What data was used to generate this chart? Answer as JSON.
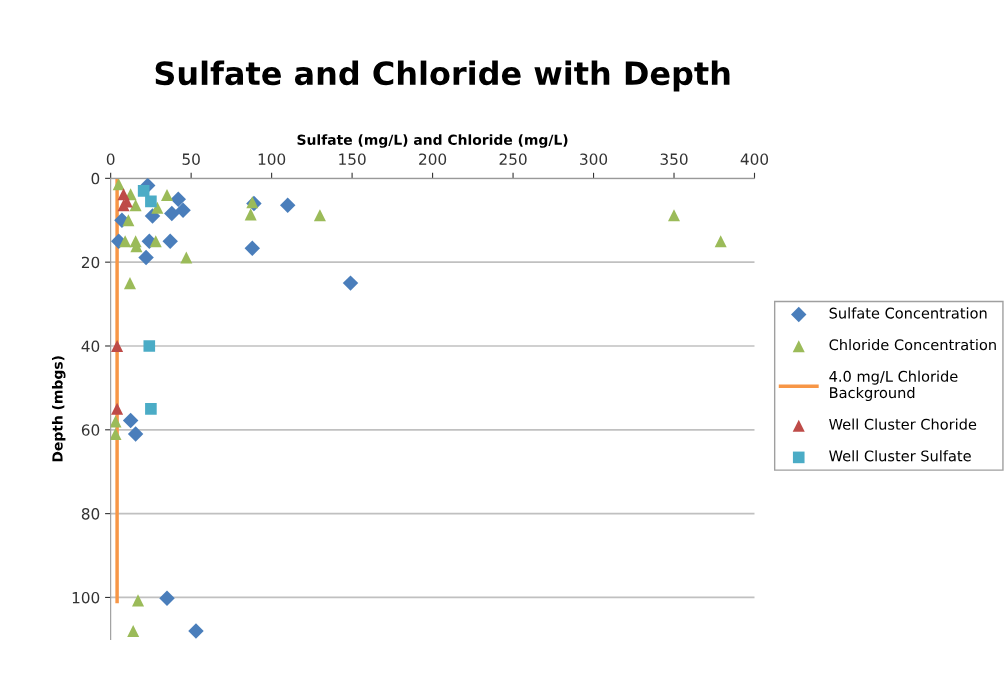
{
  "chart_data": {
    "type": "scatter",
    "title": "Sulfate and Chloride with Depth",
    "xlabel": "Sulfate (mg/L) and Chloride (mg/L)",
    "ylabel": "Depth (mbgs)",
    "xlim": [
      0,
      400
    ],
    "xticks": [
      0,
      50,
      100,
      150,
      200,
      250,
      300,
      350,
      400
    ],
    "ylim": [
      110,
      0
    ],
    "yticks": [
      0,
      20,
      40,
      60,
      80,
      100
    ],
    "grid": "y",
    "legend": "right",
    "series": [
      {
        "name": "Sulfate Concentration",
        "color": "#4a7ebb",
        "marker": "diamond",
        "x": [
          23,
          42,
          89,
          110,
          45,
          38,
          26,
          7,
          5,
          24,
          37,
          88,
          22,
          149,
          12.4,
          15.5,
          35,
          53
        ],
        "values": [
          1.7,
          5,
          6,
          6.4,
          7.6,
          8.4,
          9,
          10,
          15,
          15,
          15,
          16.7,
          18.9,
          25,
          57.8,
          61,
          100.2,
          108
        ]
      },
      {
        "name": "Chloride Concentration",
        "color": "#9bbb59",
        "marker": "triangle",
        "x": [
          5,
          12.4,
          15.5,
          35,
          29,
          88,
          87,
          130,
          350,
          379,
          11,
          9,
          15.5,
          28,
          16,
          47,
          12,
          3,
          3,
          17,
          14
        ],
        "values": [
          1.4,
          3.8,
          6.4,
          4,
          7,
          5.7,
          8.6,
          8.8,
          8.8,
          15,
          10,
          15,
          15,
          15,
          16.2,
          18.9,
          25,
          58,
          61,
          100.7,
          108
        ]
      },
      {
        "name": "4.0 mg/L Chloride\nBackground",
        "color": "#f79646",
        "type": "line",
        "marker": "none",
        "x": [
          4,
          4
        ],
        "values": [
          0,
          101
        ]
      },
      {
        "name": "Well Cluster Choride",
        "color": "#be4b48",
        "marker": "triangle",
        "x": [
          8,
          10,
          8,
          4,
          4
        ],
        "values": [
          3.8,
          5.5,
          6.4,
          40,
          55
        ]
      },
      {
        "name": "Well Cluster Sulfate",
        "color": "#4bacc6",
        "marker": "square",
        "x": [
          20.5,
          25,
          24,
          25
        ],
        "values": [
          3,
          5.5,
          40,
          55
        ]
      }
    ]
  }
}
